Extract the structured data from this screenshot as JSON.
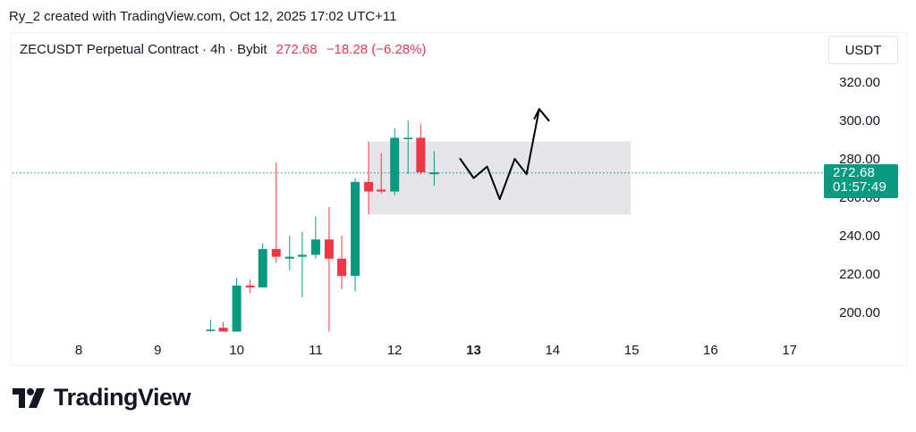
{
  "caption": "Ry_2 created with TradingView.com, Oct 12, 2025 17:02 UTC+11",
  "header": {
    "symbol": "ZECUSDT Perpetual Contract · 4h · Bybit",
    "last_price": "272.68",
    "change": "−18.28 (−6.28%)"
  },
  "currency_button": "USDT",
  "price_badge": {
    "price": "272.68",
    "countdown": "01:57:49"
  },
  "brand": {
    "name": "TradingView"
  },
  "colors": {
    "up": "#089981",
    "down": "#f23645",
    "zone": "#e1e1e6",
    "annotation": "#000000"
  },
  "chart_data": {
    "type": "candlestick",
    "symbol": "ZECUSDT",
    "interval": "4h",
    "x_tick_labels": [
      "8",
      "9",
      "10",
      "11",
      "12",
      "13",
      "14",
      "15",
      "16",
      "17"
    ],
    "y_tick_labels": [
      "200.00",
      "220.00",
      "240.00",
      "260.00",
      "280.00",
      "300.00",
      "320.00"
    ],
    "ylim": [
      187,
      328
    ],
    "last_price_line": 272.68,
    "candles": [
      {
        "day": 9.67,
        "open": 191,
        "high": 196,
        "low": 190,
        "close": 191
      },
      {
        "day": 9.83,
        "open": 192,
        "high": 195,
        "low": 190,
        "close": 190
      },
      {
        "day": 10.0,
        "open": 190,
        "high": 218,
        "low": 190,
        "close": 214
      },
      {
        "day": 10.17,
        "open": 214,
        "high": 217,
        "low": 210,
        "close": 213
      },
      {
        "day": 10.33,
        "open": 213,
        "high": 236,
        "low": 213,
        "close": 233
      },
      {
        "day": 10.5,
        "open": 233,
        "high": 278,
        "low": 226,
        "close": 229
      },
      {
        "day": 10.67,
        "open": 228,
        "high": 240,
        "low": 222,
        "close": 229
      },
      {
        "day": 10.83,
        "open": 229,
        "high": 242,
        "low": 208,
        "close": 230
      },
      {
        "day": 11.0,
        "open": 230,
        "high": 250,
        "low": 228,
        "close": 238
      },
      {
        "day": 11.17,
        "open": 238,
        "high": 255,
        "low": 190,
        "close": 228
      },
      {
        "day": 11.33,
        "open": 228,
        "high": 240,
        "low": 212,
        "close": 219
      },
      {
        "day": 11.5,
        "open": 219,
        "high": 270,
        "low": 211,
        "close": 268
      },
      {
        "day": 11.67,
        "open": 268,
        "high": 289,
        "low": 251,
        "close": 263
      },
      {
        "day": 11.83,
        "open": 264,
        "high": 283,
        "low": 262,
        "close": 263
      },
      {
        "day": 12.0,
        "open": 263,
        "high": 296,
        "low": 261,
        "close": 291
      },
      {
        "day": 12.17,
        "open": 291,
        "high": 300,
        "low": 272,
        "close": 291
      },
      {
        "day": 12.33,
        "open": 291,
        "high": 298,
        "low": 272,
        "close": 273
      },
      {
        "day": 12.5,
        "open": 272,
        "high": 284,
        "low": 266,
        "close": 273
      }
    ],
    "annotations": {
      "zone": {
        "day_from": 11.67,
        "day_to": 14.99,
        "price_from": 251,
        "price_to": 289
      },
      "projection_path": [
        {
          "day": 12.83,
          "price": 280
        },
        {
          "day": 13.0,
          "price": 270
        },
        {
          "day": 13.17,
          "price": 276
        },
        {
          "day": 13.33,
          "price": 259
        },
        {
          "day": 13.52,
          "price": 280
        },
        {
          "day": 13.67,
          "price": 272
        },
        {
          "day": 13.83,
          "price": 306
        },
        {
          "day": 13.95,
          "price": 300
        }
      ],
      "arrowhead": [
        {
          "day": 13.77,
          "price": 301
        },
        {
          "day": 13.83,
          "price": 306
        },
        {
          "day": 13.95,
          "price": 300
        }
      ]
    }
  }
}
